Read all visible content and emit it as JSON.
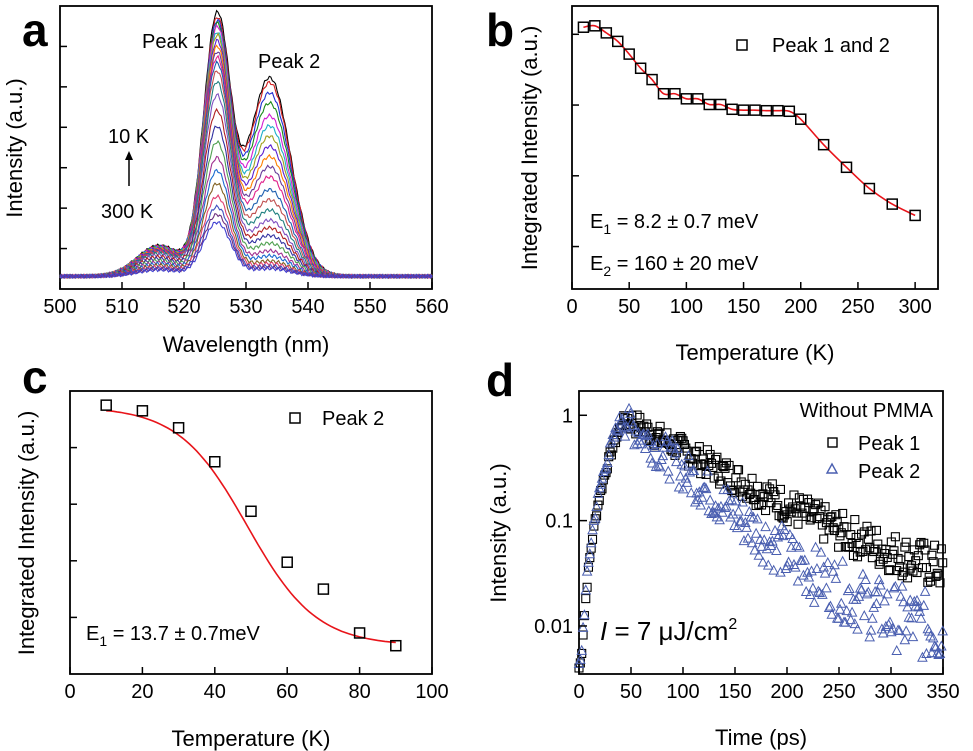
{
  "figure": {
    "panels": [
      "a",
      "b",
      "c",
      "d"
    ]
  },
  "chart_data": [
    {
      "panel": "a",
      "type": "line",
      "xlabel": "Wavelength (nm)",
      "ylabel": "Intensity (a.u.)",
      "xlim": [
        500,
        560
      ],
      "xticks": [
        500,
        510,
        520,
        530,
        540,
        550,
        560
      ],
      "ylim": [
        0,
        1.0
      ],
      "annotations": [
        {
          "text": "Peak 1",
          "x": 524,
          "y": 0.96
        },
        {
          "text": "Peak 2",
          "x": 534,
          "y": 0.77
        },
        {
          "text": "10 K",
          "x": 506,
          "y": 0.52
        },
        {
          "text": "300 K",
          "x": 506,
          "y": 0.26
        }
      ],
      "arrow": {
        "from_label": "300 K",
        "to_label": "10 K"
      },
      "colors": [
        "#000000",
        "#d21f1f",
        "#1f2fd2",
        "#1a8a1a",
        "#d21fd2",
        "#1fb0c8",
        "#a0a020",
        "#5a1fd2",
        "#ff7f00",
        "#6a3d9a",
        "#e0208a",
        "#2060b0",
        "#c05050",
        "#208080",
        "#8050c0",
        "#b02020",
        "#3030a0",
        "#50a050",
        "#a03090",
        "#1a6ad0",
        "#806020",
        "#e04070",
        "#4050c0",
        "#703080",
        "#4040d0"
      ],
      "series": [
        {
          "p1": 1.0,
          "p2": 0.78
        },
        {
          "p1": 0.98,
          "p2": 0.76
        },
        {
          "p1": 0.97,
          "p2": 0.72
        },
        {
          "p1": 0.96,
          "p2": 0.68
        },
        {
          "p1": 0.95,
          "p2": 0.63
        },
        {
          "p1": 0.93,
          "p2": 0.59
        },
        {
          "p1": 0.92,
          "p2": 0.55
        },
        {
          "p1": 0.9,
          "p2": 0.51
        },
        {
          "p1": 0.88,
          "p2": 0.47
        },
        {
          "p1": 0.86,
          "p2": 0.43
        },
        {
          "p1": 0.84,
          "p2": 0.39
        },
        {
          "p1": 0.82,
          "p2": 0.34
        },
        {
          "p1": 0.79,
          "p2": 0.3
        },
        {
          "p1": 0.75,
          "p2": 0.26
        },
        {
          "p1": 0.7,
          "p2": 0.22
        },
        {
          "p1": 0.64,
          "p2": 0.19
        },
        {
          "p1": 0.58,
          "p2": 0.16
        },
        {
          "p1": 0.52,
          "p2": 0.13
        },
        {
          "p1": 0.46,
          "p2": 0.1
        },
        {
          "p1": 0.41,
          "p2": 0.08
        },
        {
          "p1": 0.36,
          "p2": 0.06
        },
        {
          "p1": 0.31,
          "p2": 0.05
        },
        {
          "p1": 0.27,
          "p2": 0.04
        },
        {
          "p1": 0.24,
          "p2": 0.035
        },
        {
          "p1": 0.21,
          "p2": 0.03
        }
      ]
    },
    {
      "panel": "b",
      "type": "scatter",
      "xlabel": "Temperature (K)",
      "ylabel": "Integrated Intensity (a.u.)",
      "xlim": [
        0,
        320
      ],
      "xticks": [
        0,
        50,
        100,
        150,
        200,
        250,
        300
      ],
      "ylim": [
        0,
        1.0
      ],
      "legend": "Peak 1 and 2",
      "legend_position": "top-right",
      "fit_color": "#e8141a",
      "annotations": [
        "E1 = 8.2 ± 0.7 meV",
        "E2 = 160 ± 20 meV"
      ],
      "x": [
        10,
        20,
        30,
        40,
        50,
        60,
        70,
        80,
        90,
        100,
        110,
        120,
        130,
        140,
        150,
        160,
        170,
        180,
        190,
        200,
        220,
        240,
        260,
        280,
        300
      ],
      "y": [
        0.925,
        0.93,
        0.905,
        0.875,
        0.83,
        0.78,
        0.74,
        0.69,
        0.69,
        0.672,
        0.672,
        0.652,
        0.652,
        0.635,
        0.632,
        0.632,
        0.63,
        0.63,
        0.628,
        0.6,
        0.51,
        0.43,
        0.355,
        0.3,
        0.26
      ]
    },
    {
      "panel": "c",
      "type": "scatter",
      "xlabel": "Temperature (K)",
      "ylabel": "Integrated Intensity (a.u.)",
      "xlim": [
        0,
        100
      ],
      "xticks": [
        0,
        20,
        40,
        60,
        80,
        100
      ],
      "ylim": [
        0,
        1.0
      ],
      "legend": "Peak 2",
      "legend_position": "top-right",
      "fit_color": "#e8141a",
      "annotations": [
        "E1 = 13.7 ± 0.7meV"
      ],
      "x": [
        10,
        20,
        30,
        40,
        50,
        60,
        70,
        80,
        90
      ],
      "y": [
        0.95,
        0.93,
        0.87,
        0.75,
        0.575,
        0.395,
        0.3,
        0.145,
        0.1
      ]
    },
    {
      "panel": "d",
      "type": "scatter",
      "xlabel": "Time (ps)",
      "ylabel": "Intensity (a.u.)",
      "xlim": [
        0,
        350
      ],
      "xticks": [
        0,
        50,
        100,
        150,
        200,
        250,
        300,
        350
      ],
      "yscale": "log",
      "ylim": [
        0.0035,
        1.7
      ],
      "yticks": [
        1,
        0.1,
        0.01
      ],
      "yticklabels": [
        "1",
        "0.1",
        "0.01"
      ],
      "legend_title": "Without PMMA",
      "legend_position": "top-right",
      "annotation": "I = 7 μJ/cm²",
      "series": [
        {
          "name": "Peak 1",
          "marker": "square",
          "color": "#000000",
          "peak_time": 45,
          "tau": 78,
          "noise_floor": 0.02
        },
        {
          "name": "Peak 2",
          "marker": "triangle",
          "color": "#4a5fb0",
          "peak_time": 42,
          "tau": 50,
          "noise_floor": 0.004
        }
      ]
    }
  ]
}
